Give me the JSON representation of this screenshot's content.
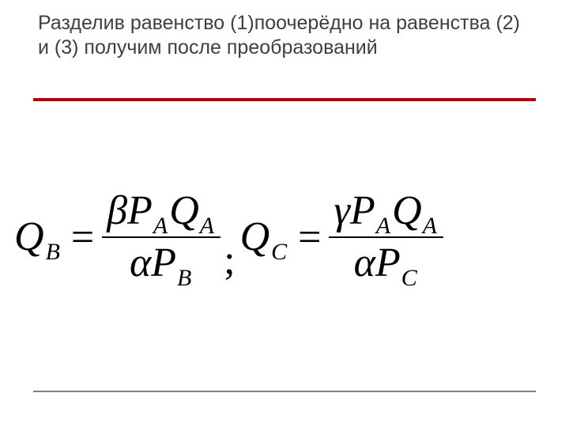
{
  "title": "Разделив равенство (1)поочерёдно на равенства (2) и (3) получим после преобразований",
  "colors": {
    "title_text": "#3f3f3f",
    "red_rule": "#b90000",
    "bottom_rule": "#808080",
    "formula_text": "#000000",
    "background": "#ffffff"
  },
  "typography": {
    "title_fontsize": 25,
    "formula_fontsize": 52,
    "subscript_fontsize": 30,
    "title_font": "Verdana",
    "formula_font": "Times New Roman"
  },
  "layout": {
    "slide_width": 720,
    "slide_height": 540,
    "red_rule_height": 4,
    "bottom_rule_height": 2
  },
  "formula": {
    "eq1": {
      "lhs_var": "Q",
      "lhs_sub": "B",
      "num_greek": "β",
      "num_v1": "P",
      "num_s1": "A",
      "num_v2": "Q",
      "num_s2": "A",
      "den_greek": "α",
      "den_v1": "P",
      "den_s1": "B"
    },
    "separator": ";",
    "eq2": {
      "lhs_var": "Q",
      "lhs_sub": "C",
      "num_greek": "γ",
      "num_v1": "P",
      "num_s1": "A",
      "num_v2": "Q",
      "num_s2": "A",
      "den_greek": "α",
      "den_v1": "P",
      "den_s1": "C"
    },
    "equals": "="
  }
}
